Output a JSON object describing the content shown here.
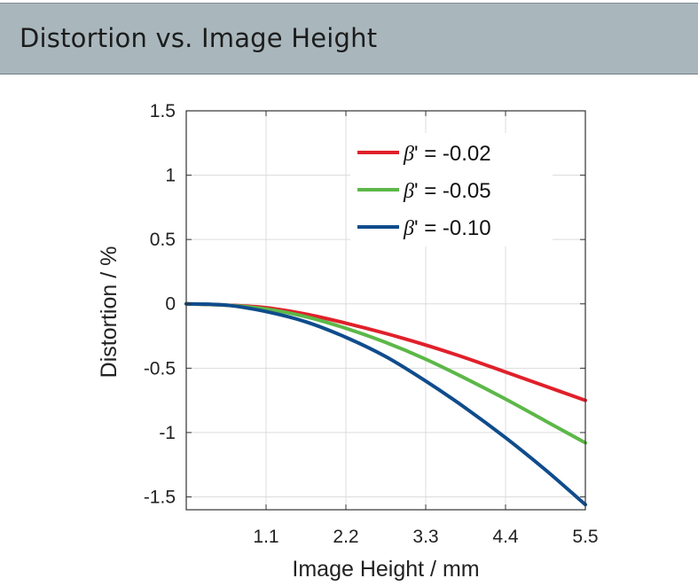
{
  "header": {
    "title": "Distortion vs. Image Height"
  },
  "chart_data": {
    "type": "line",
    "title": "",
    "xlabel": "Image Height / mm",
    "ylabel": "Distortion / %",
    "xlim": [
      0,
      5.5
    ],
    "ylim": [
      -1.6,
      1.5
    ],
    "xticks": [
      1.1,
      2.2,
      3.3,
      4.4,
      5.5
    ],
    "xtick_labels": [
      "1.1",
      "2.2",
      "3.3",
      "4.4",
      "5.5"
    ],
    "yticks": [
      1.5,
      1,
      0.5,
      0,
      -0.5,
      -1,
      -1.5
    ],
    "ytick_labels": [
      "1.5",
      "1",
      "0.5",
      "0",
      "-0.5",
      "-1",
      "-1.5"
    ],
    "grid": true,
    "legend_position": "top-right",
    "x": [
      0,
      0.55,
      1.1,
      1.65,
      2.2,
      2.75,
      3.3,
      3.85,
      4.4,
      4.95,
      5.5
    ],
    "series": [
      {
        "name_prefix": "β",
        "name_suffix": "' = -0.02",
        "color": "#e0202a",
        "values": [
          0,
          -0.01,
          -0.03,
          -0.08,
          -0.15,
          -0.23,
          -0.32,
          -0.42,
          -0.53,
          -0.64,
          -0.75
        ]
      },
      {
        "name_prefix": "β",
        "name_suffix": "' = -0.05",
        "color": "#5cb848",
        "values": [
          0,
          -0.01,
          -0.04,
          -0.1,
          -0.19,
          -0.3,
          -0.43,
          -0.58,
          -0.74,
          -0.91,
          -1.08
        ]
      },
      {
        "name_prefix": "β",
        "name_suffix": "' = -0.10",
        "color": "#0f4c8c",
        "values": [
          0,
          -0.01,
          -0.06,
          -0.14,
          -0.26,
          -0.41,
          -0.6,
          -0.81,
          -1.04,
          -1.29,
          -1.56
        ]
      }
    ]
  }
}
